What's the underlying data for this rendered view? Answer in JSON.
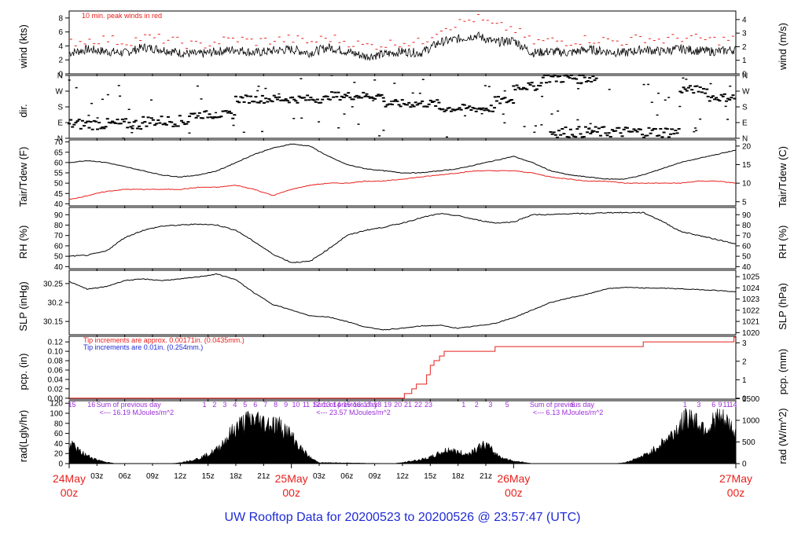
{
  "title": "UW Rooftop Data for 20200523  to  20200526 @ 23:57:47  (UTC)",
  "colors": {
    "obs": "#000000",
    "red": "#e8211d",
    "blue": "#1f2bd6",
    "purple": "#9a2fd6",
    "title": "#1f2bd6"
  },
  "time_axis": {
    "hours": 72,
    "ticks": [
      "03z",
      "06z",
      "09z",
      "12z",
      "15z",
      "18z",
      "21z",
      "03z",
      "06z",
      "09z",
      "12z",
      "15z",
      "18z",
      "21z"
    ],
    "tick_hours": [
      3,
      6,
      9,
      12,
      15,
      18,
      21,
      27,
      30,
      33,
      36,
      39,
      42,
      45
    ],
    "major": [
      {
        "hour": 0,
        "day": "24May",
        "z": "00z"
      },
      {
        "hour": 24,
        "day": "25May",
        "z": "00z"
      },
      {
        "hour": 48,
        "day": "26May",
        "z": "00z"
      },
      {
        "hour": 72,
        "day": "27May",
        "z": "00z"
      }
    ]
  },
  "chart_data": [
    {
      "type": "line",
      "name": "wind",
      "ylabel": "wind (kts)",
      "y2label": "wind (m/s)",
      "ylim": [
        0,
        9
      ],
      "yticks": [
        0,
        2,
        4,
        6,
        8
      ],
      "y2ticks": [
        0,
        1,
        2,
        3,
        4
      ],
      "y2ratio": 1.944,
      "note": "10 min. peak winds in red",
      "series": [
        {
          "name": "wind",
          "hours": [
            0,
            2,
            4,
            6,
            8,
            10,
            12,
            14,
            16,
            18,
            20,
            22,
            24,
            26,
            28,
            30,
            32,
            34,
            36,
            38,
            40,
            42,
            44,
            46,
            48,
            50,
            52,
            54,
            56,
            58,
            60,
            62,
            64,
            66,
            68,
            70,
            72
          ],
          "values": [
            3.0,
            3.5,
            3.2,
            3.0,
            3.8,
            3.5,
            3.0,
            2.8,
            3.2,
            3.5,
            3.0,
            3.3,
            3.5,
            3.0,
            3.8,
            3.2,
            2.5,
            2.8,
            3.2,
            3.0,
            4.5,
            5.0,
            5.5,
            4.5,
            4.8,
            3.0,
            3.2,
            3.0,
            3.5,
            3.2,
            3.0,
            3.5,
            3.2,
            3.6,
            3.3,
            3.2,
            3.5
          ]
        },
        {
          "name": "peak",
          "hours": [
            0,
            2,
            4,
            6,
            8,
            10,
            12,
            14,
            16,
            18,
            20,
            22,
            24,
            26,
            28,
            30,
            32,
            34,
            36,
            38,
            40,
            42,
            44,
            46,
            48,
            50,
            52,
            54,
            56,
            58,
            60,
            62,
            64,
            66,
            68,
            70,
            72
          ],
          "values": [
            4.5,
            4.8,
            5.0,
            4.5,
            5.2,
            5.0,
            4.5,
            4.0,
            4.6,
            5.0,
            4.6,
            4.8,
            5.0,
            4.5,
            5.2,
            4.6,
            4.0,
            4.2,
            4.6,
            4.4,
            6.5,
            7.2,
            8.0,
            6.8,
            6.5,
            4.5,
            4.8,
            4.6,
            5.0,
            4.8,
            4.6,
            5.2,
            4.8,
            5.2,
            5.0,
            4.8,
            5.0
          ]
        }
      ]
    },
    {
      "type": "scatter",
      "name": "direction",
      "ylabel": "dir.",
      "ylim": [
        0,
        4
      ],
      "yticks": [
        "N",
        "E",
        "S",
        "W",
        "N"
      ],
      "segments": [
        {
          "from": 0,
          "to": 8,
          "level": 0.9
        },
        {
          "from": 8,
          "to": 13,
          "level": 1.1
        },
        {
          "from": 13,
          "to": 18,
          "level": 1.5
        },
        {
          "from": 18,
          "to": 28,
          "level": 2.5
        },
        {
          "from": 28,
          "to": 34,
          "level": 2.7
        },
        {
          "from": 34,
          "to": 40,
          "level": 2.2
        },
        {
          "from": 40,
          "to": 46,
          "level": 1.9
        },
        {
          "from": 46,
          "to": 48,
          "level": 2.4
        },
        {
          "from": 48,
          "to": 51,
          "level": 3.3
        },
        {
          "from": 51,
          "to": 57,
          "level": 3.85
        },
        {
          "from": 52,
          "to": 66,
          "level": 0.4
        },
        {
          "from": 66,
          "to": 69,
          "level": 3.1
        },
        {
          "from": 69,
          "to": 72,
          "level": 2.6
        }
      ]
    },
    {
      "type": "line",
      "name": "temperature",
      "ylabel": "Tair/Tdew (F)",
      "y2label": "Tair/Tdew (C)",
      "ylim": [
        39,
        71
      ],
      "yticks": [
        40,
        45,
        50,
        55,
        60,
        65,
        70
      ],
      "y2ticks": [
        5,
        10,
        15,
        20
      ],
      "series": [
        {
          "name": "Tair",
          "hours": [
            0,
            2,
            4,
            6,
            8,
            10,
            12,
            14,
            16,
            18,
            20,
            22,
            24,
            26,
            28,
            30,
            32,
            34,
            36,
            38,
            40,
            42,
            44,
            46,
            48,
            50,
            52,
            54,
            56,
            58,
            60,
            62,
            64,
            66,
            68,
            70,
            72
          ],
          "values": [
            60,
            61,
            60,
            58,
            56,
            54,
            53,
            54,
            56,
            60,
            64,
            67,
            69,
            68,
            63,
            59,
            57,
            56,
            55,
            55,
            56,
            57,
            59,
            61,
            63,
            60,
            56,
            54,
            53,
            52,
            52,
            54,
            57,
            60,
            62,
            64,
            66
          ]
        },
        {
          "name": "Tdew",
          "hours": [
            0,
            2,
            4,
            6,
            8,
            10,
            12,
            14,
            16,
            18,
            20,
            22,
            24,
            26,
            28,
            30,
            32,
            34,
            36,
            38,
            40,
            42,
            44,
            46,
            48,
            50,
            52,
            54,
            56,
            58,
            60,
            62,
            64,
            66,
            68,
            70,
            72
          ],
          "values": [
            42,
            44,
            46,
            47,
            47,
            47,
            47,
            48,
            48,
            49,
            47,
            44,
            47,
            49,
            50,
            50,
            51,
            51,
            52,
            53,
            54,
            55,
            56,
            56,
            56,
            55,
            53,
            52,
            51,
            51,
            50,
            50,
            50,
            50,
            51,
            51,
            50
          ]
        }
      ]
    },
    {
      "type": "line",
      "name": "humidity",
      "ylabel": "RH (%)",
      "y2label": "RH (%)",
      "ylim": [
        38,
        97
      ],
      "yticks": [
        40,
        50,
        60,
        70,
        80,
        90
      ],
      "y2ticks": [
        40,
        50,
        60,
        70,
        80,
        90
      ],
      "series": [
        {
          "name": "RH",
          "hours": [
            0,
            2,
            4,
            6,
            8,
            10,
            12,
            14,
            16,
            18,
            20,
            22,
            24,
            26,
            28,
            30,
            32,
            34,
            36,
            38,
            40,
            42,
            44,
            46,
            48,
            50,
            52,
            54,
            56,
            58,
            60,
            62,
            64,
            66,
            68,
            70,
            72
          ],
          "values": [
            50,
            51,
            55,
            68,
            75,
            79,
            80,
            81,
            80,
            75,
            64,
            52,
            44,
            45,
            57,
            70,
            75,
            78,
            82,
            87,
            91,
            89,
            85,
            82,
            83,
            90,
            90,
            91,
            91,
            92,
            92,
            92,
            84,
            74,
            70,
            66,
            62
          ]
        }
      ]
    },
    {
      "type": "line",
      "name": "pressure",
      "ylabel": "SLP (inHg)",
      "y2label": "SLP (hPa)",
      "ylim": [
        30.115,
        30.285
      ],
      "yticks": [
        30.15,
        30.2,
        30.25
      ],
      "y2ticks": [
        1020,
        1021,
        1022,
        1023,
        1024,
        1025
      ],
      "series": [
        {
          "name": "SLP",
          "hours": [
            0,
            2,
            4,
            6,
            8,
            10,
            12,
            14,
            16,
            18,
            20,
            22,
            24,
            26,
            28,
            30,
            32,
            34,
            36,
            38,
            40,
            42,
            44,
            46,
            48,
            50,
            52,
            54,
            56,
            58,
            60,
            62,
            64,
            66,
            68,
            70,
            72
          ],
          "values": [
            30.255,
            30.235,
            30.242,
            30.258,
            30.262,
            30.258,
            30.262,
            30.268,
            30.275,
            30.26,
            30.225,
            30.195,
            30.18,
            30.165,
            30.162,
            30.15,
            30.135,
            30.128,
            30.132,
            30.138,
            30.14,
            30.132,
            30.138,
            30.145,
            30.16,
            30.18,
            30.2,
            30.212,
            30.222,
            30.236,
            30.24,
            30.238,
            30.238,
            30.236,
            30.234,
            30.232,
            30.228
          ]
        }
      ]
    },
    {
      "type": "line",
      "name": "precipitation",
      "ylabel": "pcp. (in)",
      "y2label": "pcp. (mm)",
      "ylim": [
        -0.002,
        0.132
      ],
      "yticks": [
        "0.00",
        "0.02",
        "0.04",
        "0.06",
        "0.08",
        "0.10",
        "0.12"
      ],
      "y2ticks": [
        0,
        1,
        2,
        3
      ],
      "notes": [
        {
          "text": "Tip increments are approx. 0.00171in. (0.0435mm.)",
          "color": "red"
        },
        {
          "text": "Tip increments are 0.01in. (0.254mm.)",
          "color": "blue"
        }
      ],
      "series": [
        {
          "name": "accum",
          "hours": [
            0,
            36,
            36.2,
            37,
            37.5,
            38,
            38.6,
            39,
            39.4,
            40,
            40.5,
            41,
            42,
            44,
            46,
            47,
            48,
            50,
            52,
            54,
            56,
            58,
            60,
            62,
            64,
            66,
            68,
            70,
            71.8,
            72
          ],
          "values": [
            0,
            0,
            0.01,
            0.02,
            0.03,
            0.03,
            0.05,
            0.07,
            0.08,
            0.09,
            0.1,
            0.1,
            0.1,
            0.1,
            0.11,
            0.11,
            0.11,
            0.11,
            0.11,
            0.11,
            0.11,
            0.11,
            0.11,
            0.12,
            0.12,
            0.12,
            0.12,
            0.12,
            0.13,
            0.13
          ]
        }
      ]
    },
    {
      "type": "area",
      "name": "radiation",
      "ylabel": "rad(Lgly/hr)",
      "y2label": "rad (W/m^2)",
      "ylim": [
        0,
        125
      ],
      "yticks": [
        0,
        20,
        40,
        60,
        80,
        100,
        120
      ],
      "y2ticks": [
        0,
        500,
        1000,
        1500
      ],
      "hour_labels": [
        {
          "hour": 0.3,
          "text": "15"
        },
        {
          "hour": 2.4,
          "text": "16"
        },
        {
          "hour": 14.6,
          "text": "1"
        },
        {
          "hour": 15.7,
          "text": "2"
        },
        {
          "hour": 16.8,
          "text": "3"
        },
        {
          "hour": 17.9,
          "text": "4"
        },
        {
          "hour": 19.0,
          "text": "5"
        },
        {
          "hour": 20.1,
          "text": "6"
        },
        {
          "hour": 21.2,
          "text": "7"
        },
        {
          "hour": 22.3,
          "text": "8"
        },
        {
          "hour": 23.4,
          "text": "9"
        },
        {
          "hour": 24.5,
          "text": "10"
        },
        {
          "hour": 25.6,
          "text": "11"
        },
        {
          "hour": 26.7,
          "text": "12"
        },
        {
          "hour": 27.8,
          "text": "13"
        },
        {
          "hour": 28.9,
          "text": "14"
        },
        {
          "hour": 30.0,
          "text": "15"
        },
        {
          "hour": 31.1,
          "text": "16"
        },
        {
          "hour": 32.2,
          "text": "17"
        },
        {
          "hour": 33.3,
          "text": "18"
        },
        {
          "hour": 34.4,
          "text": "19"
        },
        {
          "hour": 35.5,
          "text": "20"
        },
        {
          "hour": 36.6,
          "text": "21"
        },
        {
          "hour": 37.7,
          "text": "22"
        },
        {
          "hour": 38.8,
          "text": "23"
        },
        {
          "hour": 42.6,
          "text": "1"
        },
        {
          "hour": 44.0,
          "text": "2"
        },
        {
          "hour": 45.5,
          "text": "3"
        },
        {
          "hour": 47.3,
          "text": "5"
        },
        {
          "hour": 54.4,
          "text": "6"
        },
        {
          "hour": 66.5,
          "text": "1"
        },
        {
          "hour": 68.0,
          "text": "3"
        },
        {
          "hour": 69.6,
          "text": "6"
        },
        {
          "hour": 70.3,
          "text": "9"
        },
        {
          "hour": 71.0,
          "text": "11"
        },
        {
          "hour": 71.7,
          "text": "14"
        }
      ],
      "sums": [
        {
          "hour": 2.6,
          "line1": "Sum of previous day",
          "line2": "<--- 16.19 MJoules/m^2"
        },
        {
          "hour": 26.0,
          "line1": "Sum of previous day",
          "line2": "<--- 23.57 MJoules/m^2"
        },
        {
          "hour": 49.4,
          "line1": "Sum of previous day",
          "line2": "<--- 6.13 MJoules/m^2"
        }
      ],
      "series": [
        {
          "name": "rad",
          "hours": [
            0,
            0.5,
            1,
            2,
            3,
            4,
            5,
            11,
            12,
            13,
            14,
            15,
            16,
            17,
            18,
            19,
            20,
            21,
            22,
            23,
            24,
            25,
            26,
            27,
            35,
            36,
            37,
            38,
            39,
            40,
            41,
            42,
            43,
            44,
            45,
            46,
            47,
            48,
            49,
            50,
            59,
            60,
            61,
            62,
            63,
            64,
            65,
            66,
            67,
            68,
            69,
            70,
            71,
            72
          ],
          "values": [
            30,
            38,
            25,
            15,
            8,
            3,
            0,
            0,
            2,
            6,
            10,
            18,
            28,
            50,
            70,
            82,
            88,
            80,
            78,
            72,
            55,
            30,
            12,
            2,
            0,
            2,
            5,
            8,
            12,
            20,
            28,
            22,
            18,
            30,
            38,
            20,
            10,
            5,
            3,
            0,
            0,
            2,
            8,
            15,
            25,
            40,
            55,
            75,
            95,
            80,
            70,
            90,
            80,
            60
          ]
        }
      ]
    }
  ]
}
